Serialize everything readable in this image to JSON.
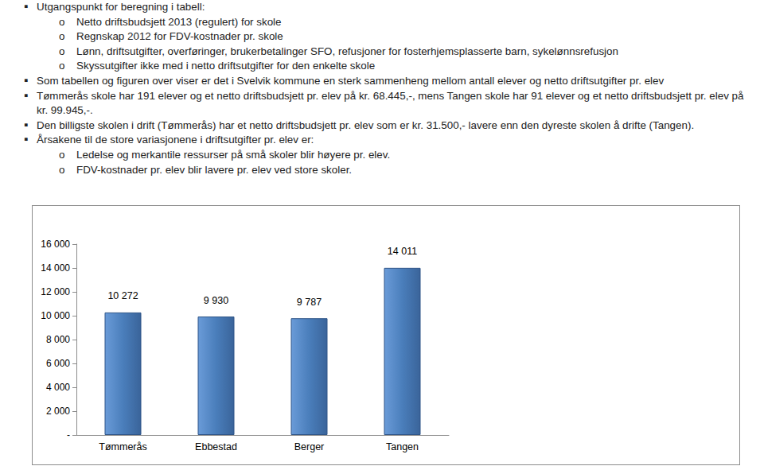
{
  "document": {
    "bullets": [
      {
        "text": "Utgangspunkt for beregning i tabell:",
        "sub": [
          "Netto driftsbudsjett 2013 (regulert) for skole",
          "Regnskap 2012 for FDV-kostnader pr. skole",
          "Lønn, driftsutgifter, overføringer, brukerbetalinger SFO, refusjoner for fosterhjemsplasserte barn, sykelønnsrefusjon",
          "Skyssutgifter ikke med i netto driftsutgifter for den enkelte skole"
        ]
      },
      {
        "text": "Som tabellen og figuren over viser er det i Svelvik kommune en sterk sammenheng mellom antall elever og netto driftsutgifter pr. elev",
        "sub": []
      },
      {
        "text": "Tømmerås skole har 191 elever og et netto driftsbudsjett pr. elev på kr. 68.445,-, mens Tangen skole har 91 elever og et netto driftsbudsjett pr. elev på kr. 99.945,-.",
        "sub": []
      },
      {
        "text": "Den billigste skolen i drift (Tømmerås) har et netto driftsbudsjett pr. elev som er kr. 31.500,- lavere enn den dyreste skolen å drifte (Tangen).",
        "sub": []
      },
      {
        "text": "Årsakene til de store variasjonene i driftsutgifter pr. elev er:",
        "sub": [
          "Ledelse og merkantile ressurser på små skoler blir høyere pr. elev.",
          "FDV-kostnader pr. elev blir lavere pr. elev ved store skoler."
        ]
      }
    ]
  },
  "chart_data": {
    "type": "bar",
    "categories": [
      "Tømmerås",
      "Ebbestad",
      "Berger",
      "Tangen"
    ],
    "values": [
      10272,
      9930,
      9787,
      14011
    ],
    "value_labels": [
      "10 272",
      "9 930",
      "9 787",
      "14 011"
    ],
    "data_labels": true,
    "color": "#4a7ebb",
    "grid": false,
    "ylim": [
      0,
      16000
    ],
    "yticks": [
      {
        "value": 0,
        "label": "-"
      },
      {
        "value": 2000,
        "label": "2 000"
      },
      {
        "value": 4000,
        "label": "4 000"
      },
      {
        "value": 6000,
        "label": "6 000"
      },
      {
        "value": 8000,
        "label": "8 000"
      },
      {
        "value": 10000,
        "label": "10 000"
      },
      {
        "value": 12000,
        "label": "12 000"
      },
      {
        "value": 14000,
        "label": "14 000"
      },
      {
        "value": 16000,
        "label": "16 000"
      }
    ]
  }
}
